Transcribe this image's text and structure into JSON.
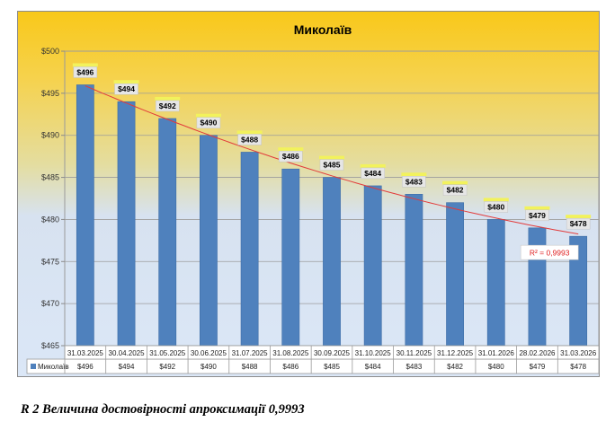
{
  "chart_data": {
    "type": "bar",
    "title": "Миколаїв",
    "categories": [
      "31.03.2025",
      "30.04.2025",
      "31.05.2025",
      "30.06.2025",
      "31.07.2025",
      "31.08.2025",
      "30.09.2025",
      "31.10.2025",
      "30.11.2025",
      "31.12.2025",
      "31.01.2026",
      "28.02.2026",
      "31.03.2026"
    ],
    "series": [
      {
        "name": "Миколаїв",
        "values": [
          496,
          494,
          492,
          490,
          488,
          486,
          485,
          484,
          483,
          482,
          480,
          479,
          478
        ]
      }
    ],
    "data_labels": [
      "$496",
      "$494",
      "$492",
      "$490",
      "$488",
      "$486",
      "$485",
      "$484",
      "$483",
      "$482",
      "$480",
      "$479",
      "$478"
    ],
    "table_values": [
      "$496",
      "$494",
      "$492",
      "$490",
      "$488",
      "$486",
      "$485",
      "$484",
      "$483",
      "$482",
      "$480",
      "$479",
      "$478"
    ],
    "y_ticks": [
      465,
      470,
      475,
      480,
      485,
      490,
      495,
      500
    ],
    "y_tick_labels": [
      "$465",
      "$470",
      "$475",
      "$480",
      "$485",
      "$490",
      "$495",
      "$500"
    ],
    "ylim": [
      465,
      500
    ],
    "trendline": {
      "type": "polynomial",
      "r2_label": "R² = 0,9993",
      "color": "#e23b3b"
    },
    "legend_label": "Миколаїв",
    "legend_placement": "data-table",
    "grid": true,
    "bar_color": "#4f81bd",
    "xlabel": "",
    "ylabel": ""
  },
  "caption": "R 2 Величина достовірності апроксимації 0,9993"
}
